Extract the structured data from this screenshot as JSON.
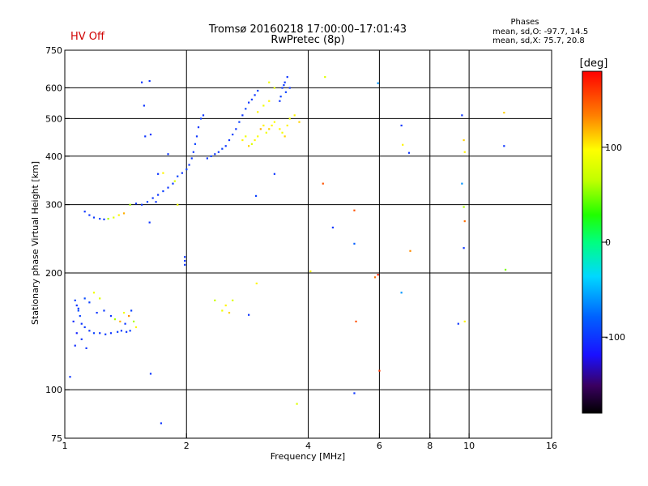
{
  "header": {
    "title_line1": "Tromsø 20160218 17:00:00–17:01:43",
    "title_line2": "RwPretec (8p)",
    "status": "HV Off",
    "status_color": "#d00000",
    "phases_title": "Phases",
    "phases_o": "mean, sd,O: -97.7, 14.5",
    "phases_x": "mean, sd,X: 75.7, 20.8"
  },
  "chart_data": {
    "type": "scatter",
    "xlabel": "Frequency [MHz]",
    "ylabel": "Stationary phase Virtual Height [km]",
    "x_scale": "log",
    "y_scale": "log",
    "xlim": [
      1,
      16
    ],
    "ylim": [
      75,
      750
    ],
    "x_ticks": [
      1,
      2,
      4,
      6,
      8,
      10,
      16
    ],
    "y_ticks": [
      75,
      100,
      200,
      300,
      400,
      500,
      600,
      750
    ],
    "x_grid": [
      2,
      4,
      6,
      8,
      10
    ],
    "y_grid": [
      100,
      200,
      300,
      400,
      500,
      600
    ],
    "colorbar": {
      "label": "[deg]",
      "range": [
        -180,
        180
      ],
      "ticks": [
        100,
        0,
        -100
      ]
    },
    "points": [
      [
        1.06,
        170,
        -95
      ],
      [
        1.07,
        165,
        -100
      ],
      [
        1.08,
        160,
        -90
      ],
      [
        1.05,
        150,
        -105
      ],
      [
        1.09,
        155,
        -95
      ],
      [
        1.1,
        148,
        -100
      ],
      [
        1.12,
        145,
        -98
      ],
      [
        1.15,
        142,
        -100
      ],
      [
        1.18,
        140,
        -95
      ],
      [
        1.22,
        140,
        -100
      ],
      [
        1.26,
        139,
        -98
      ],
      [
        1.3,
        140,
        -100
      ],
      [
        1.35,
        141,
        -95
      ],
      [
        1.38,
        142,
        -98
      ],
      [
        1.42,
        141,
        -100
      ],
      [
        1.45,
        142,
        -95
      ],
      [
        1.07,
        140,
        -110
      ],
      [
        1.1,
        135,
        -100
      ],
      [
        1.06,
        130,
        -105
      ],
      [
        1.13,
        128,
        -100
      ],
      [
        1.08,
        162,
        -95
      ],
      [
        1.12,
        172,
        -90
      ],
      [
        1.15,
        168,
        -95
      ],
      [
        1.2,
        158,
        -100
      ],
      [
        1.25,
        160,
        -98
      ],
      [
        1.3,
        155,
        -100
      ],
      [
        1.33,
        152,
        60
      ],
      [
        1.37,
        150,
        120
      ],
      [
        1.4,
        158,
        90
      ],
      [
        1.44,
        155,
        130
      ],
      [
        1.48,
        150,
        60
      ],
      [
        1.5,
        145,
        100
      ],
      [
        1.18,
        178,
        90
      ],
      [
        1.22,
        172,
        80
      ],
      [
        1.41,
        148,
        -100
      ],
      [
        1.46,
        160,
        -95
      ],
      [
        1.03,
        108,
        -100
      ],
      [
        1.63,
        110,
        -100
      ],
      [
        1.73,
        82,
        -100
      ],
      [
        1.12,
        288,
        -100
      ],
      [
        1.15,
        282,
        -100
      ],
      [
        1.18,
        278,
        -98
      ],
      [
        1.22,
        276,
        -95
      ],
      [
        1.25,
        275,
        -100
      ],
      [
        1.28,
        276,
        60
      ],
      [
        1.32,
        278,
        80
      ],
      [
        1.36,
        282,
        100
      ],
      [
        1.4,
        285,
        120
      ],
      [
        1.45,
        300,
        60
      ],
      [
        1.5,
        302,
        -100
      ],
      [
        1.55,
        300,
        -100
      ],
      [
        1.6,
        305,
        -95
      ],
      [
        1.65,
        312,
        -100
      ],
      [
        1.7,
        318,
        -100
      ],
      [
        1.75,
        325,
        -95
      ],
      [
        1.8,
        332,
        -100
      ],
      [
        1.85,
        340,
        -100
      ],
      [
        1.9,
        355,
        -95
      ],
      [
        1.95,
        362,
        -100
      ],
      [
        2.0,
        370,
        -95
      ],
      [
        2.03,
        380,
        -100
      ],
      [
        2.06,
        395,
        -98
      ],
      [
        2.08,
        410,
        -100
      ],
      [
        2.1,
        430,
        -95
      ],
      [
        2.12,
        450,
        -100
      ],
      [
        2.14,
        475,
        -100
      ],
      [
        2.17,
        500,
        -95
      ],
      [
        2.2,
        510,
        -100
      ],
      [
        2.25,
        395,
        -100
      ],
      [
        2.3,
        400,
        -95
      ],
      [
        2.35,
        405,
        -100
      ],
      [
        2.4,
        410,
        -100
      ],
      [
        2.45,
        418,
        -95
      ],
      [
        2.5,
        425,
        -100
      ],
      [
        2.55,
        440,
        -100
      ],
      [
        2.6,
        455,
        -95
      ],
      [
        2.65,
        470,
        -100
      ],
      [
        2.7,
        490,
        -95
      ],
      [
        2.75,
        510,
        -100
      ],
      [
        2.8,
        530,
        -95
      ],
      [
        2.85,
        550,
        -100
      ],
      [
        2.9,
        560,
        -98
      ],
      [
        2.95,
        575,
        -100
      ],
      [
        3.0,
        590,
        -95
      ],
      [
        3.45,
        600,
        -100
      ],
      [
        3.48,
        610,
        -98
      ],
      [
        3.5,
        620,
        -100
      ],
      [
        3.52,
        585,
        -95
      ],
      [
        3.55,
        640,
        -100
      ],
      [
        3.6,
        600,
        -100
      ],
      [
        3.42,
        570,
        -95
      ],
      [
        3.4,
        555,
        -100
      ],
      [
        3.3,
        600,
        80
      ],
      [
        3.2,
        620,
        90
      ],
      [
        2.75,
        440,
        100
      ],
      [
        2.8,
        450,
        90
      ],
      [
        2.85,
        425,
        110
      ],
      [
        2.9,
        430,
        80
      ],
      [
        2.95,
        440,
        100
      ],
      [
        3.0,
        450,
        95
      ],
      [
        3.05,
        470,
        120
      ],
      [
        3.1,
        480,
        100
      ],
      [
        3.15,
        460,
        90
      ],
      [
        3.2,
        470,
        110
      ],
      [
        3.25,
        480,
        100
      ],
      [
        3.3,
        490,
        95
      ],
      [
        3.4,
        470,
        100
      ],
      [
        3.45,
        460,
        90
      ],
      [
        3.5,
        450,
        110
      ],
      [
        3.55,
        480,
        100
      ],
      [
        3.6,
        500,
        90
      ],
      [
        3.7,
        510,
        100
      ],
      [
        3.8,
        490,
        110
      ],
      [
        3.0,
        520,
        100
      ],
      [
        3.1,
        540,
        90
      ],
      [
        3.2,
        555,
        100
      ],
      [
        2.45,
        160,
        90
      ],
      [
        2.5,
        165,
        100
      ],
      [
        2.55,
        158,
        110
      ],
      [
        2.6,
        170,
        80
      ],
      [
        2.35,
        170,
        70
      ],
      [
        1.98,
        220,
        -100
      ],
      [
        1.98,
        210,
        -100
      ],
      [
        1.98,
        215,
        -100
      ],
      [
        1.55,
        620,
        -100
      ],
      [
        1.62,
        625,
        -100
      ],
      [
        1.57,
        540,
        -100
      ],
      [
        1.58,
        450,
        -100
      ],
      [
        1.63,
        455,
        -100
      ],
      [
        1.7,
        360,
        -100
      ],
      [
        1.68,
        305,
        -100
      ],
      [
        1.62,
        270,
        -100
      ],
      [
        1.9,
        300,
        90
      ],
      [
        1.87,
        345,
        80
      ],
      [
        1.8,
        405,
        -100
      ],
      [
        1.75,
        362,
        100
      ],
      [
        3.3,
        360,
        -100
      ],
      [
        2.97,
        316,
        -95
      ],
      [
        2.98,
        188,
        100
      ],
      [
        2.85,
        156,
        -100
      ],
      [
        3.75,
        92,
        80
      ],
      [
        4.05,
        202,
        100
      ],
      [
        4.4,
        640,
        80
      ],
      [
        4.35,
        340,
        150
      ],
      [
        4.6,
        262,
        -100
      ],
      [
        5.2,
        290,
        150
      ],
      [
        5.2,
        238,
        -80
      ],
      [
        5.2,
        98,
        -100
      ],
      [
        5.25,
        150,
        150
      ],
      [
        5.85,
        195,
        140
      ],
      [
        5.95,
        198,
        170
      ],
      [
        6.0,
        112,
        160
      ],
      [
        5.95,
        617,
        -60
      ],
      [
        6.8,
        178,
        -60
      ],
      [
        6.8,
        480,
        -100
      ],
      [
        6.85,
        428,
        100
      ],
      [
        7.1,
        408,
        -100
      ],
      [
        7.15,
        228,
        130
      ],
      [
        9.6,
        510,
        -100
      ],
      [
        9.7,
        440,
        110
      ],
      [
        9.75,
        410,
        100
      ],
      [
        9.6,
        340,
        -60
      ],
      [
        9.7,
        296,
        60
      ],
      [
        9.75,
        272,
        140
      ],
      [
        9.7,
        232,
        -100
      ],
      [
        9.4,
        148,
        -100
      ],
      [
        9.75,
        150,
        100
      ],
      [
        12.2,
        518,
        110
      ],
      [
        12.2,
        425,
        -100
      ],
      [
        12.3,
        204,
        50
      ]
    ]
  }
}
